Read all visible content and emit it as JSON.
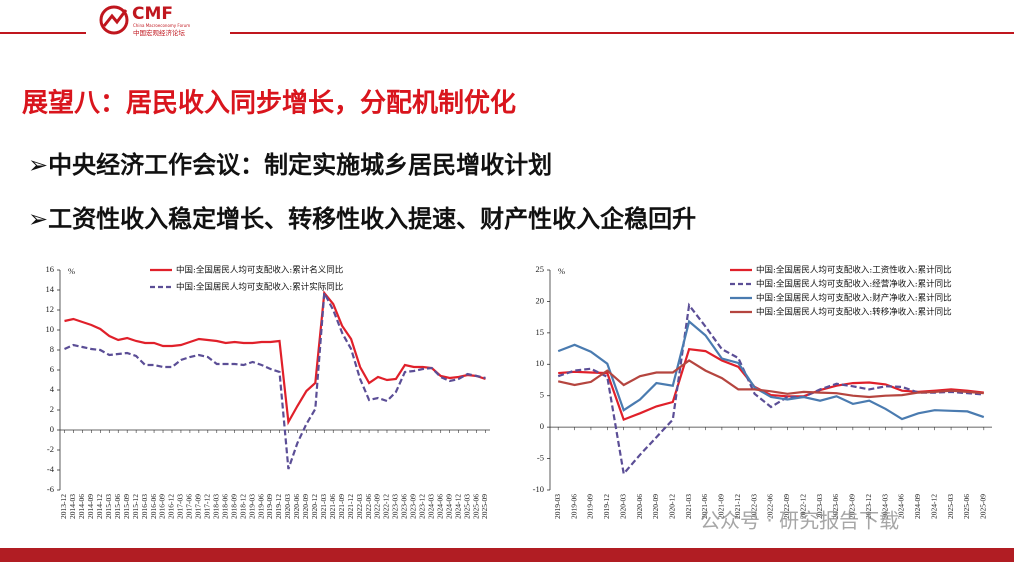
{
  "header": {
    "logo": "CMF",
    "logo_subtitle": "China Macroeconomy Forum",
    "logo_cn": "中国宏观经济论坛"
  },
  "slide": {
    "title": "展望八：居民收入同步增长，分配机制优化",
    "bullets": [
      "➢中央经济工作会议：制定实施城乡居民增收计划",
      "➢工资性收入稳定增长、转移性收入提速、财产性收入企稳回升"
    ]
  },
  "watermark": "公众号 · 研究报告下载",
  "chart_data": [
    {
      "type": "line",
      "y_unit": "%",
      "legend": "upper left",
      "categories": [
        "2013-12",
        "2014-03",
        "2014-06",
        "2014-09",
        "2014-12",
        "2015-03",
        "2015-06",
        "2015-09",
        "2015-12",
        "2016-03",
        "2016-06",
        "2016-09",
        "2016-12",
        "2017-03",
        "2017-06",
        "2017-09",
        "2017-12",
        "2018-03",
        "2018-06",
        "2018-09",
        "2018-12",
        "2019-03",
        "2019-06",
        "2019-09",
        "2019-12",
        "2020-03",
        "2020-06",
        "2020-09",
        "2020-12",
        "2021-03",
        "2021-06",
        "2021-09",
        "2021-12",
        "2022-03",
        "2022-06",
        "2022-09",
        "2022-12",
        "2023-03",
        "2023-06",
        "2023-09",
        "2023-12",
        "2024-03",
        "2024-06",
        "2024-09",
        "2024-12",
        "2025-03",
        "2025-06",
        "2025-09"
      ],
      "series": [
        {
          "name": "中国:全国居民人均可支配收入:累计名义同比",
          "color": "#e0202a",
          "dash": false,
          "values": [
            10.9,
            11.1,
            10.8,
            10.5,
            10.1,
            9.4,
            9.0,
            9.2,
            8.9,
            8.7,
            8.7,
            8.4,
            8.4,
            8.5,
            8.8,
            9.1,
            9.0,
            8.9,
            8.7,
            8.8,
            8.7,
            8.7,
            8.8,
            8.8,
            8.9,
            0.8,
            2.4,
            3.9,
            4.7,
            13.7,
            12.6,
            10.4,
            9.1,
            6.3,
            4.7,
            5.3,
            5.0,
            5.1,
            6.5,
            6.3,
            6.3,
            6.2,
            5.4,
            5.2,
            5.3,
            5.5,
            5.4,
            5.1
          ]
        },
        {
          "name": "中国:全国居民人均可支配收入:累计实际同比",
          "color": "#5b4e96",
          "dash": true,
          "values": [
            8.1,
            8.5,
            8.3,
            8.1,
            8.0,
            7.5,
            7.6,
            7.7,
            7.4,
            6.5,
            6.5,
            6.3,
            6.3,
            7.0,
            7.3,
            7.5,
            7.3,
            6.6,
            6.6,
            6.6,
            6.5,
            6.8,
            6.5,
            6.1,
            5.8,
            -3.9,
            -1.3,
            0.6,
            2.1,
            13.7,
            12.0,
            9.7,
            8.1,
            5.1,
            3.0,
            3.2,
            2.9,
            3.8,
            5.8,
            5.9,
            6.1,
            6.2,
            5.3,
            4.9,
            5.1,
            5.6,
            5.4,
            5.2
          ]
        }
      ],
      "ylim": [
        -6,
        16
      ],
      "yticks": [
        -6,
        -4,
        -2,
        0,
        2,
        4,
        6,
        8,
        10,
        12,
        14,
        16
      ]
    },
    {
      "type": "line",
      "y_unit": "%",
      "legend": "upper right",
      "categories": [
        "2019-03",
        "2019-06",
        "2019-09",
        "2019-12",
        "2020-03",
        "2020-06",
        "2020-09",
        "2020-12",
        "2021-03",
        "2021-06",
        "2021-09",
        "2021-12",
        "2022-03",
        "2022-06",
        "2022-09",
        "2022-12",
        "2023-03",
        "2023-06",
        "2023-09",
        "2023-12",
        "2024-03",
        "2024-06",
        "2024-09",
        "2024-12",
        "2025-03",
        "2025-06",
        "2025-09"
      ],
      "series": [
        {
          "name": "中国:全国居民人均可支配收入:工资性收入:累计同比",
          "color": "#e0202a",
          "dash": false,
          "values": [
            8.6,
            8.8,
            8.7,
            8.6,
            1.2,
            2.2,
            3.3,
            4.0,
            12.4,
            12.1,
            10.6,
            9.6,
            6.4,
            5.1,
            4.9,
            4.9,
            5.9,
            6.6,
            7.0,
            7.1,
            6.8,
            5.8,
            5.6,
            5.8,
            6.0,
            5.8,
            5.5
          ]
        },
        {
          "name": "中国:全国居民人均可支配收入:经营净收入:累计同比",
          "color": "#5b4e96",
          "dash": true,
          "values": [
            8.1,
            9.0,
            9.3,
            8.0,
            -7.4,
            -4.4,
            -1.6,
            1.2,
            19.4,
            16.0,
            12.4,
            11.0,
            5.3,
            3.2,
            4.8,
            4.8,
            6.0,
            6.9,
            6.5,
            6.0,
            6.5,
            6.4,
            5.5,
            5.5,
            5.6,
            5.4,
            5.2
          ]
        },
        {
          "name": "中国:全国居民人均可支配收入:财产净收入:累计同比",
          "color": "#4a7bb0",
          "dash": false,
          "values": [
            12.1,
            13.1,
            12.0,
            10.1,
            2.7,
            4.4,
            7.0,
            6.6,
            16.8,
            14.6,
            10.9,
            10.2,
            6.3,
            4.8,
            4.4,
            4.8,
            4.2,
            4.9,
            3.7,
            4.2,
            2.9,
            1.3,
            2.2,
            2.7,
            2.6,
            2.5,
            1.6
          ]
        },
        {
          "name": "中国:全国居民人均可支配收入:转移净收入:累计同比",
          "color": "#b5453f",
          "dash": false,
          "values": [
            7.3,
            6.7,
            7.2,
            9.0,
            6.7,
            8.1,
            8.7,
            8.7,
            10.6,
            9.0,
            7.8,
            6.0,
            6.0,
            5.7,
            5.3,
            5.6,
            5.5,
            5.4,
            5.0,
            4.8,
            5.0,
            5.1,
            5.5,
            5.6,
            5.8,
            5.6,
            5.4
          ]
        }
      ],
      "ylim": [
        -10,
        25
      ],
      "yticks": [
        -10,
        -5,
        0,
        5,
        10,
        15,
        20,
        25
      ]
    }
  ]
}
